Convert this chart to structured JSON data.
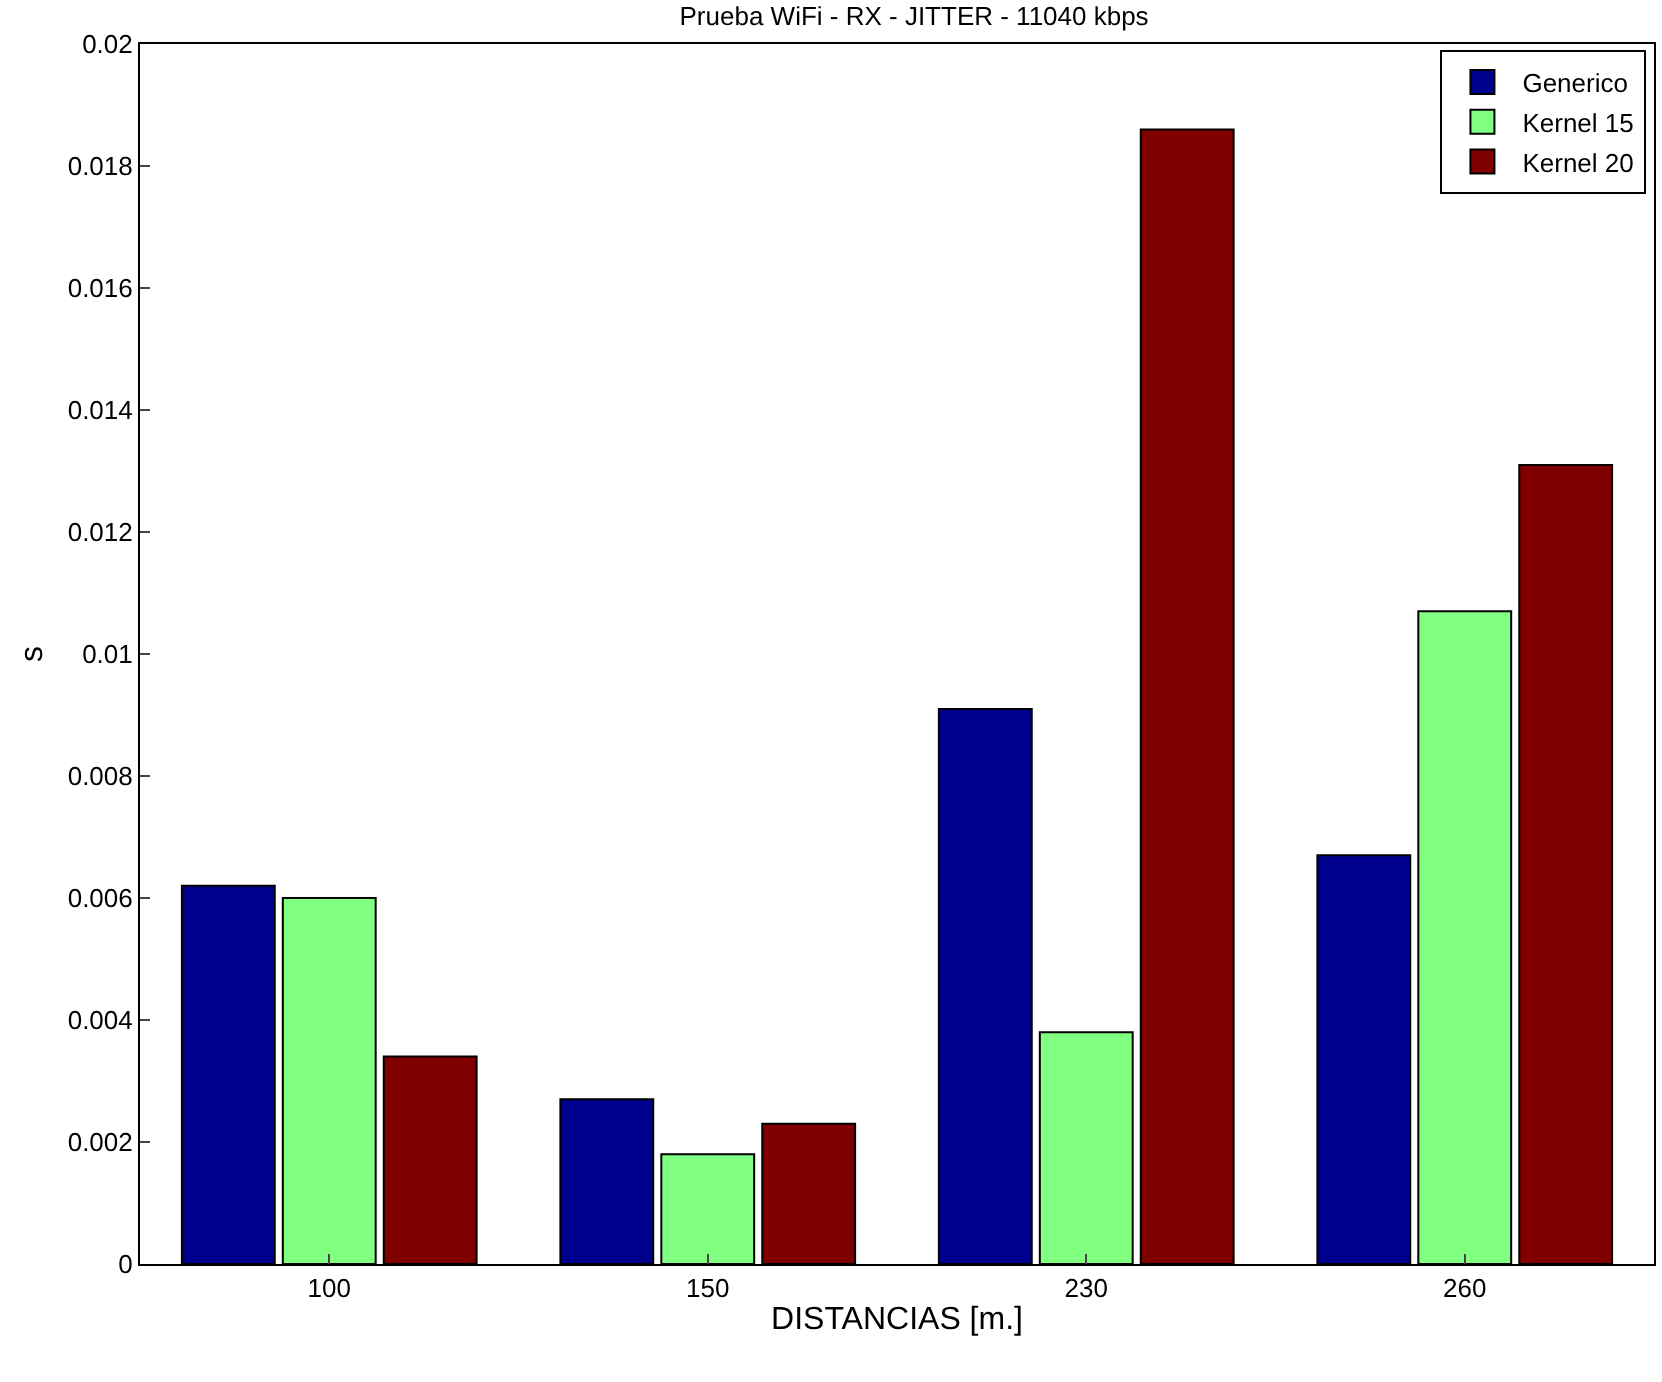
{
  "chart_data": {
    "type": "bar",
    "title": "Prueba WiFi - RX - JITTER - 11040 kbps",
    "xlabel": "DISTANCIAS [m.]",
    "ylabel": "s",
    "categories": [
      "100",
      "150",
      "230",
      "260"
    ],
    "series": [
      {
        "name": "Generico",
        "color": "#00008f",
        "values": [
          0.0062,
          0.0027,
          0.0091,
          0.0067
        ]
      },
      {
        "name": "Kernel 15",
        "color": "#80ff80",
        "values": [
          0.006,
          0.0018,
          0.0038,
          0.0107
        ]
      },
      {
        "name": "Kernel 20",
        "color": "#800000",
        "values": [
          0.0034,
          0.0023,
          0.0186,
          0.0131
        ]
      }
    ],
    "ylim": [
      0,
      0.02
    ],
    "yticks": [
      0,
      0.002,
      0.004,
      0.006,
      0.008,
      0.01,
      0.012,
      0.014,
      0.016,
      0.018,
      0.02
    ],
    "legend": "top right"
  }
}
